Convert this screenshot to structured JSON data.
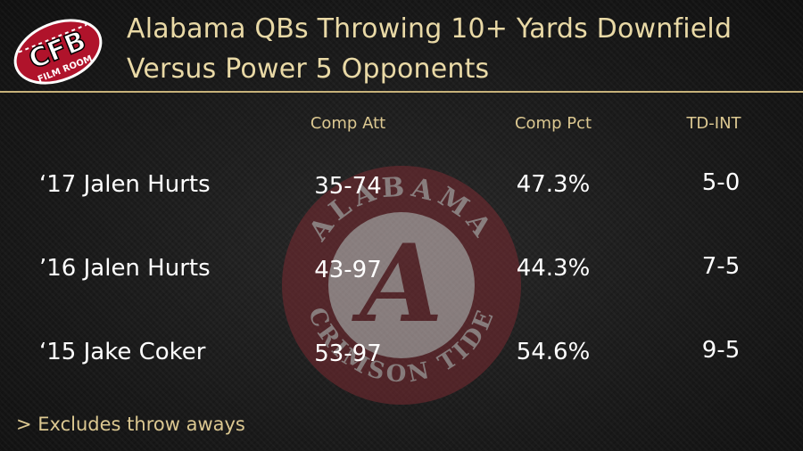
{
  "logo": {
    "big_text": "CFB",
    "small_text": "FILM ROOM"
  },
  "title": {
    "line1": "Alabama QBs Throwing 10+ Yards Downfield",
    "line2": "Versus Power 5 Opponents"
  },
  "watermark": {
    "ring_text_top": "ALABAMA",
    "ring_text_bottom": "CRIMSON TIDE",
    "letter": "A"
  },
  "table": {
    "headers": [
      "Comp Att",
      "Comp Pct",
      "TD-INT"
    ],
    "rows": [
      {
        "player": "‘17 Jalen Hurts",
        "comp_att": "35-74",
        "comp_pct": "47.3%",
        "td_int": "5-0"
      },
      {
        "player": "’16 Jalen Hurts",
        "comp_att": "43-97",
        "comp_pct": "44.3%",
        "td_int": "7-5"
      },
      {
        "player": "‘15 Jake Coker",
        "comp_att": "53-97",
        "comp_pct": "54.6%",
        "td_int": "9-5"
      }
    ]
  },
  "footnote": "> Excludes throw aways",
  "colors": {
    "accent": "#dcc891",
    "logo_red": "#b0132b",
    "watermark_red": "#7a2a31"
  }
}
